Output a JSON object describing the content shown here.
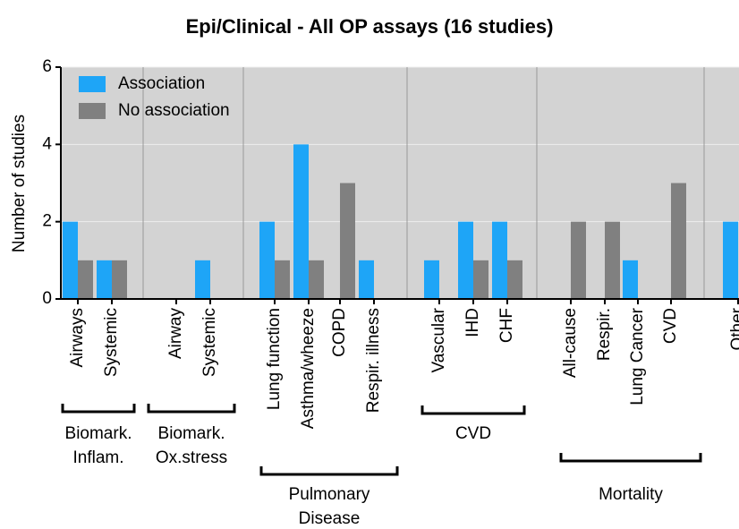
{
  "chart_data": {
    "type": "bar",
    "title": "Epi/Clinical - All OP assays (16 studies)",
    "y_label": "Number of studies",
    "categories": [
      "Airways",
      "Systemic",
      "Airway",
      "Systemic",
      "Lung function",
      "Asthma/wheeze",
      "COPD",
      "Respir. illness",
      "Vascular",
      "IHD",
      "CHF",
      "All-cause",
      "Respir.",
      "Lung Cancer",
      "CVD",
      "Other"
    ],
    "series": [
      {
        "name": "Association",
        "color": "#1ea5f7",
        "values": [
          2,
          1,
          0,
          1,
          2,
          4,
          0,
          1,
          1,
          2,
          2,
          0,
          0,
          1,
          0,
          2
        ]
      },
      {
        "name": "No association",
        "color": "#808080",
        "values": [
          1,
          1,
          0,
          0,
          1,
          1,
          3,
          0,
          0,
          1,
          1,
          2,
          2,
          0,
          3,
          null
        ]
      }
    ],
    "groups": [
      {
        "label": [
          "Biomark.",
          "Inflam."
        ]
      },
      {
        "label": [
          "Biomark.",
          "Ox.stress"
        ]
      },
      {
        "label": [
          "Pulmonary",
          "Disease"
        ]
      },
      {
        "label": [
          "CVD"
        ]
      },
      {
        "label": [
          "Mortality"
        ]
      }
    ],
    "ylim": [
      0,
      6
    ],
    "yticks": [
      0,
      2,
      4,
      6
    ],
    "grid": true,
    "legend": "top-left"
  }
}
